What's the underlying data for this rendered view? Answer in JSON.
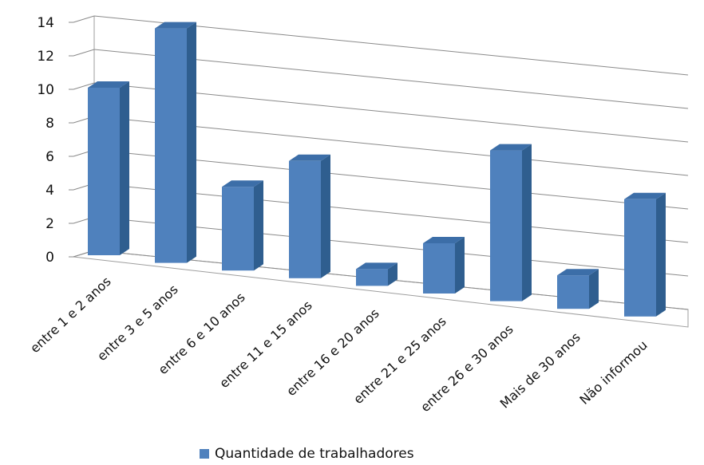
{
  "chart_data": {
    "type": "bar",
    "categories": [
      "entre 1 e 2 anos",
      "entre 3 e 5 anos",
      "entre 6 e 10 anos",
      "entre 11 e 15 anos",
      "entre 16 e 20 anos",
      "entre 21 e 25 anos",
      "entre 26 e 30 anos",
      "Mais de 30 anos",
      "Não informou"
    ],
    "series": [
      {
        "name": "Quantidade de trabalhadores",
        "values": [
          10,
          14,
          5,
          7,
          1,
          3,
          9,
          2,
          7
        ],
        "color": "#4f81bd"
      }
    ],
    "ylim": [
      0,
      14
    ],
    "yticks": [
      0,
      2,
      4,
      6,
      8,
      10,
      12,
      14
    ],
    "grid": true,
    "legend_position": "bottom",
    "style": "3d-column"
  }
}
